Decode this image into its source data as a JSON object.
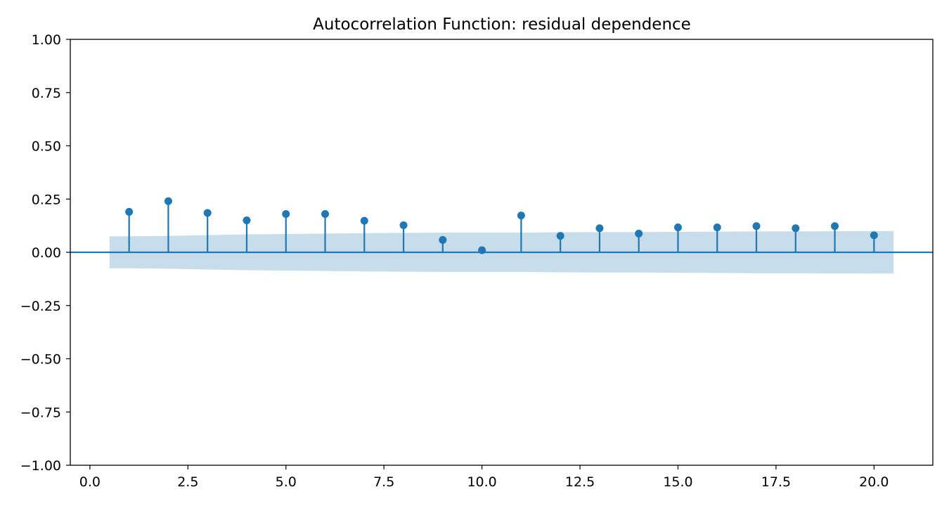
{
  "chart_data": {
    "type": "stem",
    "title": "Autocorrelation Function: residual dependence",
    "xlabel": "",
    "ylabel": "",
    "xlim": [
      -0.5,
      21.5
    ],
    "ylim": [
      -1.0,
      1.0
    ],
    "x_ticks": [
      0.0,
      2.5,
      5.0,
      7.5,
      10.0,
      12.5,
      15.0,
      17.5,
      20.0
    ],
    "x_tick_labels": [
      "0.0",
      "2.5",
      "5.0",
      "7.5",
      "10.0",
      "12.5",
      "15.0",
      "17.5",
      "20.0"
    ],
    "y_ticks": [
      -1.0,
      -0.75,
      -0.5,
      -0.25,
      0.0,
      0.25,
      0.5,
      0.75,
      1.0
    ],
    "y_tick_labels": [
      "−1.00",
      "−0.75",
      "−0.50",
      "−0.25",
      "0.00",
      "0.25",
      "0.50",
      "0.75",
      "1.00"
    ],
    "grid": false,
    "series": [
      {
        "lags": [
          1,
          2,
          3,
          4,
          5,
          6,
          7,
          8,
          9,
          10,
          11,
          12,
          13,
          14,
          15,
          16,
          17,
          18,
          19,
          20
        ],
        "values": [
          0.19,
          0.24,
          0.185,
          0.15,
          0.18,
          0.18,
          0.148,
          0.127,
          0.058,
          0.01,
          0.173,
          0.077,
          0.113,
          0.088,
          0.117,
          0.117,
          0.123,
          0.113,
          0.123,
          0.08
        ]
      }
    ],
    "confidence_band": {
      "x": [
        0.5,
        1,
        2,
        3,
        4,
        5,
        6,
        7,
        8,
        9,
        10,
        11,
        12,
        13,
        14,
        15,
        16,
        17,
        18,
        19,
        20,
        20.5
      ],
      "half_width": [
        0.075,
        0.075,
        0.077,
        0.081,
        0.084,
        0.086,
        0.088,
        0.09,
        0.091,
        0.092,
        0.092,
        0.092,
        0.094,
        0.095,
        0.095,
        0.096,
        0.097,
        0.098,
        0.098,
        0.099,
        0.1,
        0.1
      ]
    },
    "colors": {
      "stem": "#1f77b4",
      "band": "#1f77b4",
      "zero_line": "#1f77b4",
      "axes": "#000000"
    }
  }
}
